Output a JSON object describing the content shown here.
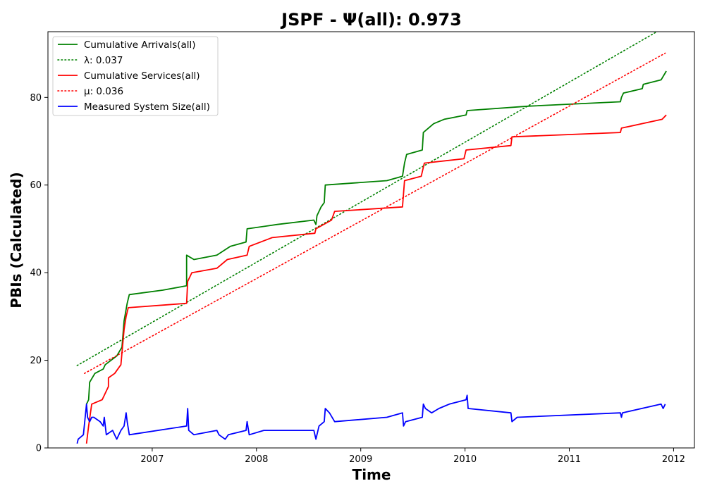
{
  "chart_data": {
    "type": "line",
    "title": "JSPF -  Ψ(all): 0.973",
    "xlabel": "Time",
    "ylabel": "PBIs (Calculated)",
    "xlim": [
      2006.0,
      2012.2
    ],
    "ylim": [
      0,
      95
    ],
    "xticks": [
      2007,
      2008,
      2009,
      2010,
      2011,
      2012
    ],
    "xtick_labels": [
      "2007",
      "2008",
      "2009",
      "2010",
      "2011",
      "2012"
    ],
    "yticks": [
      0,
      20,
      40,
      60,
      80
    ],
    "ytick_labels": [
      "0",
      "20",
      "40",
      "60",
      "80"
    ],
    "grid": false,
    "legend_position": "upper-left",
    "series": [
      {
        "name": "Cumulative Arrivals(all)",
        "color": "#008000",
        "style": "solid",
        "points": [
          [
            2006.37,
            10
          ],
          [
            2006.39,
            11
          ],
          [
            2006.4,
            15
          ],
          [
            2006.45,
            17
          ],
          [
            2006.53,
            18
          ],
          [
            2006.55,
            19
          ],
          [
            2006.66,
            21
          ],
          [
            2006.71,
            23
          ],
          [
            2006.73,
            29
          ],
          [
            2006.76,
            33
          ],
          [
            2006.78,
            35
          ],
          [
            2007.1,
            36
          ],
          [
            2007.33,
            37
          ],
          [
            2007.33,
            44
          ],
          [
            2007.4,
            43
          ],
          [
            2007.62,
            44
          ],
          [
            2007.75,
            46
          ],
          [
            2007.9,
            47
          ],
          [
            2007.91,
            50
          ],
          [
            2008.2,
            51
          ],
          [
            2008.55,
            52
          ],
          [
            2008.57,
            51
          ],
          [
            2008.58,
            53
          ],
          [
            2008.62,
            55
          ],
          [
            2008.65,
            56
          ],
          [
            2008.66,
            60
          ],
          [
            2009.25,
            61
          ],
          [
            2009.4,
            62
          ],
          [
            2009.42,
            65
          ],
          [
            2009.44,
            67
          ],
          [
            2009.59,
            68
          ],
          [
            2009.6,
            72
          ],
          [
            2009.7,
            74
          ],
          [
            2009.8,
            75
          ],
          [
            2010.01,
            76
          ],
          [
            2010.02,
            77
          ],
          [
            2010.6,
            78
          ],
          [
            2011.49,
            79
          ],
          [
            2011.5,
            80
          ],
          [
            2011.52,
            81
          ],
          [
            2011.7,
            82
          ],
          [
            2011.71,
            83
          ],
          [
            2011.88,
            84
          ],
          [
            2011.93,
            86
          ]
        ]
      },
      {
        "name": "λ: 0.037",
        "color": "#008000",
        "style": "dotted",
        "points": [
          [
            2006.28,
            18.8
          ],
          [
            2011.84,
            95
          ]
        ]
      },
      {
        "name": "Cumulative Services(all)",
        "color": "#ff0000",
        "style": "solid",
        "points": [
          [
            2006.37,
            1
          ],
          [
            2006.39,
            5
          ],
          [
            2006.42,
            10
          ],
          [
            2006.52,
            11
          ],
          [
            2006.58,
            14
          ],
          [
            2006.58,
            16
          ],
          [
            2006.64,
            17
          ],
          [
            2006.7,
            19
          ],
          [
            2006.73,
            27
          ],
          [
            2006.75,
            30
          ],
          [
            2006.77,
            32
          ],
          [
            2007.33,
            33
          ],
          [
            2007.34,
            38
          ],
          [
            2007.38,
            40
          ],
          [
            2007.62,
            41
          ],
          [
            2007.72,
            43
          ],
          [
            2007.91,
            44
          ],
          [
            2007.93,
            46
          ],
          [
            2008.15,
            48
          ],
          [
            2008.56,
            49
          ],
          [
            2008.57,
            50
          ],
          [
            2008.72,
            52
          ],
          [
            2008.75,
            54
          ],
          [
            2009.4,
            55
          ],
          [
            2009.42,
            61
          ],
          [
            2009.58,
            62
          ],
          [
            2009.61,
            65
          ],
          [
            2009.99,
            66
          ],
          [
            2010.01,
            68
          ],
          [
            2010.44,
            69
          ],
          [
            2010.45,
            71
          ],
          [
            2011.49,
            72
          ],
          [
            2011.5,
            73
          ],
          [
            2011.89,
            75
          ],
          [
            2011.93,
            76
          ]
        ]
      },
      {
        "name": "μ: 0.036",
        "color": "#ff0000",
        "style": "dotted",
        "points": [
          [
            2006.35,
            17
          ],
          [
            2011.92,
            90.1
          ]
        ]
      },
      {
        "name": "Measured System Size(all)",
        "color": "#0000ff",
        "style": "solid",
        "points": [
          [
            2006.28,
            1
          ],
          [
            2006.29,
            2
          ],
          [
            2006.34,
            3
          ],
          [
            2006.37,
            10
          ],
          [
            2006.38,
            7
          ],
          [
            2006.4,
            6
          ],
          [
            2006.42,
            7
          ],
          [
            2006.44,
            7
          ],
          [
            2006.5,
            6
          ],
          [
            2006.53,
            5
          ],
          [
            2006.54,
            7
          ],
          [
            2006.56,
            3
          ],
          [
            2006.62,
            4
          ],
          [
            2006.66,
            2
          ],
          [
            2006.7,
            4
          ],
          [
            2006.73,
            5
          ],
          [
            2006.75,
            8
          ],
          [
            2006.76,
            6
          ],
          [
            2006.78,
            3
          ],
          [
            2007.33,
            5
          ],
          [
            2007.34,
            9
          ],
          [
            2007.35,
            4
          ],
          [
            2007.4,
            3
          ],
          [
            2007.62,
            4
          ],
          [
            2007.64,
            3
          ],
          [
            2007.7,
            2
          ],
          [
            2007.73,
            3
          ],
          [
            2007.9,
            4
          ],
          [
            2007.91,
            6
          ],
          [
            2007.93,
            3
          ],
          [
            2008.07,
            4
          ],
          [
            2008.55,
            4
          ],
          [
            2008.57,
            2
          ],
          [
            2008.6,
            5
          ],
          [
            2008.65,
            6
          ],
          [
            2008.66,
            9
          ],
          [
            2008.7,
            8
          ],
          [
            2008.75,
            6
          ],
          [
            2009.25,
            7
          ],
          [
            2009.4,
            8
          ],
          [
            2009.41,
            5
          ],
          [
            2009.43,
            6
          ],
          [
            2009.59,
            7
          ],
          [
            2009.6,
            10
          ],
          [
            2009.62,
            9
          ],
          [
            2009.68,
            8
          ],
          [
            2009.75,
            9
          ],
          [
            2009.85,
            10
          ],
          [
            2010.01,
            11
          ],
          [
            2010.02,
            12
          ],
          [
            2010.03,
            9
          ],
          [
            2010.44,
            8
          ],
          [
            2010.45,
            6
          ],
          [
            2010.5,
            7
          ],
          [
            2011.49,
            8
          ],
          [
            2011.5,
            7
          ],
          [
            2011.51,
            8
          ],
          [
            2011.88,
            10
          ],
          [
            2011.9,
            9
          ],
          [
            2011.92,
            10
          ]
        ]
      }
    ]
  }
}
